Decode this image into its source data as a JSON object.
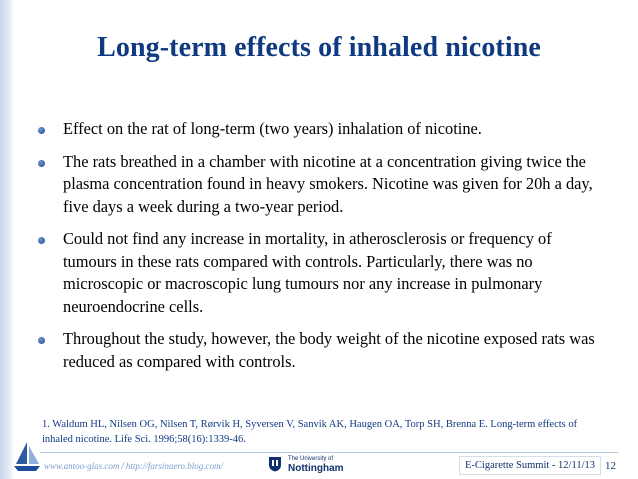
{
  "slide": {
    "title": "Long-term effects of inhaled nicotine",
    "bullets": [
      {
        "text": "Effect on the rat of long-term (two years) inhalation of nicotine."
      },
      {
        "text": "The rats breathed in a chamber with nicotine at a concentration giving twice the plasma concentration found in heavy smokers. Nicotine was given for 20h a day, five days a week during a two-year period."
      },
      {
        "text": "Could not find any increase in mortality, in atherosclerosis or frequency of tumours in these rats compared with controls. Particularly, there was no microscopic or macroscopic lung tumours nor any increase in pulmonary neuroendocrine cells."
      },
      {
        "text": "Throughout the study, however, the body weight of the nicotine exposed rats was reduced as compared with controls."
      }
    ],
    "reference": "1. Waldum HL, Nilsen OG, Nilsen T, Rørvik H, Syversen V, Sanvik AK, Haugen OA, Torp SH, Brenna E. Long-term effects of inhaled nicotine. Life Sci. 1996;58(16):1339-46."
  },
  "footer": {
    "link1": "www.antoo-glas.com",
    "separator": "/",
    "link2": "http://farsinaero.blog.com/",
    "university_small": "The University of",
    "university_name": "Nottingham",
    "event": "E-Cigarette Summit - 12/11/13",
    "page_number": "12"
  },
  "colors": {
    "title": "#0f3a82",
    "bullet": "#1c4d9a",
    "reference": "#0f3a82",
    "footer_text": "#10316b"
  }
}
